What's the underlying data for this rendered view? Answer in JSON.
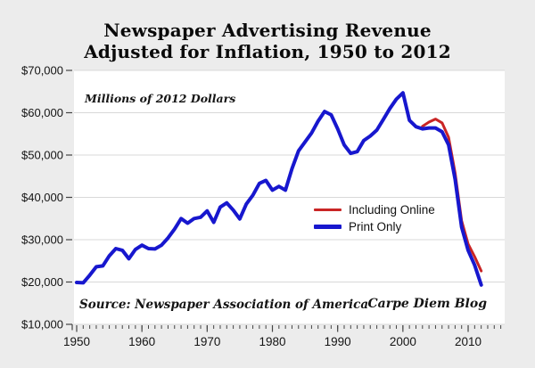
{
  "title": {
    "line1": "Newspaper Advertising Revenue",
    "line2": "Adjusted for Inflation, 1950 to 2012"
  },
  "annotations": {
    "units_note": "Millions of 2012 Dollars",
    "source_note": "Source: Newspaper Association of America",
    "credit_note": "Carpe Diem Blog"
  },
  "legend": {
    "items": [
      {
        "label": "Including Online",
        "color": "#C92525",
        "thickness": 3
      },
      {
        "label": "Print Only",
        "color": "#1717CE",
        "thickness": 5
      }
    ]
  },
  "colors": {
    "background": "#ECECEC",
    "plot_background": "#FFFFFF",
    "gridline": "#D8D8D8",
    "tick": "#444444",
    "axis_text": "#141414",
    "red_line": "#C92525",
    "blue_line": "#1717CE"
  },
  "axes": {
    "y_ticks": {
      "labels": [
        "$70,000",
        "$60,000",
        "$50,000",
        "$40,000",
        "$30,000",
        "$20,000",
        "$10,000"
      ],
      "values": [
        70000,
        60000,
        50000,
        40000,
        30000,
        20000,
        10000
      ]
    },
    "x_ticks": {
      "labels": [
        "1950",
        "1960",
        "1970",
        "1980",
        "1990",
        "2000",
        "2010"
      ],
      "values": [
        1950,
        1960,
        1970,
        1980,
        1990,
        2000,
        2010
      ]
    },
    "x_minor": {
      "start": 1950,
      "end": 2015,
      "step": 1
    }
  },
  "chart_data": {
    "type": "line",
    "title": "Newspaper Advertising Revenue Adjusted for Inflation, 1950 to 2012",
    "units": "Millions of 2012 Dollars",
    "xlim": [
      1950,
      2013
    ],
    "ylim": [
      10000,
      70000
    ],
    "grid": "horizontal",
    "legend_position": "center-right",
    "series": [
      {
        "name": "Including Online",
        "color": "#C92525",
        "start_year": 2003,
        "values": [
          56800,
          57800,
          58500,
          57600,
          54200,
          45800,
          34500,
          29000,
          26000,
          22600
        ]
      },
      {
        "name": "Print Only",
        "color": "#1717CE",
        "start_year": 1950,
        "values": [
          19900,
          19800,
          21600,
          23600,
          23800,
          26200,
          27900,
          27500,
          25500,
          27700,
          28700,
          27900,
          27800,
          28700,
          30400,
          32500,
          35000,
          33900,
          35000,
          35300,
          36800,
          34100,
          37700,
          38700,
          37000,
          34900,
          38400,
          40500,
          43300,
          44000,
          41700,
          42600,
          41700,
          46800,
          51000,
          53100,
          55200,
          58000,
          60300,
          59500,
          56200,
          52400,
          50400,
          50800,
          53400,
          54500,
          55900,
          58400,
          61000,
          63200,
          64700,
          58200,
          56700,
          56200,
          56400,
          56400,
          55500,
          52400,
          44300,
          33000,
          27500,
          24000,
          19300
        ]
      }
    ]
  }
}
